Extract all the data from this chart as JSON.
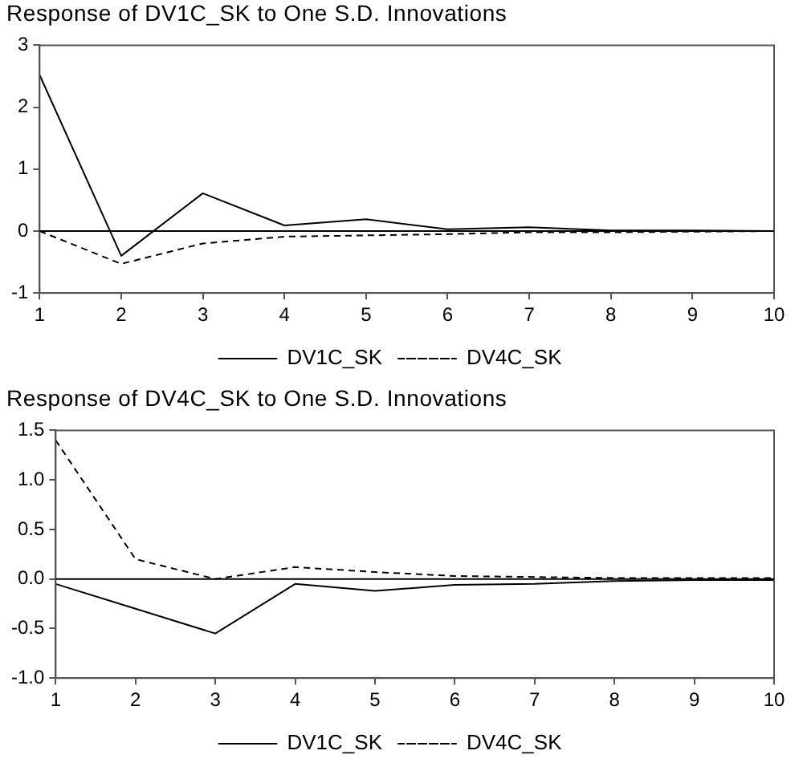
{
  "chart_data": [
    {
      "type": "line",
      "title": "Response of DV1C_SK to One S.D. Innovations",
      "x": [
        1,
        2,
        3,
        4,
        5,
        6,
        7,
        8,
        9,
        10
      ],
      "xlim": [
        1,
        10
      ],
      "xticks": [
        1,
        2,
        3,
        4,
        5,
        6,
        7,
        8,
        9,
        10
      ],
      "ylim": [
        -1,
        3
      ],
      "yticks": [
        -1,
        0,
        1,
        2,
        3
      ],
      "grid": false,
      "legend": "bottom",
      "marker": "none",
      "ref_lines": [
        {
          "axis": "y",
          "value": 0,
          "color": "#000000"
        }
      ],
      "series": [
        {
          "name": "DV1C_SK",
          "color": "#000000",
          "line_style": "solid",
          "values": [
            2.52,
            -0.4,
            0.61,
            0.09,
            0.19,
            0.03,
            0.06,
            0.01,
            0.01,
            0.0
          ]
        },
        {
          "name": "DV4C_SK",
          "color": "#000000",
          "line_style": "dashed",
          "values": [
            0,
            -0.53,
            -0.2,
            -0.09,
            -0.07,
            -0.05,
            -0.02,
            -0.02,
            -0.01,
            0.0
          ]
        }
      ]
    },
    {
      "type": "line",
      "title": "Response of DV4C_SK to One S.D. Innovations",
      "x": [
        1,
        2,
        3,
        4,
        5,
        6,
        7,
        8,
        9,
        10
      ],
      "xlim": [
        1,
        10
      ],
      "xticks": [
        1,
        2,
        3,
        4,
        5,
        6,
        7,
        8,
        9,
        10
      ],
      "ylim": [
        -1,
        1.5
      ],
      "yticks": [
        {
          "value": -1,
          "label": "-1.0"
        },
        {
          "value": -0.5,
          "label": "-0.5"
        },
        {
          "value": 0,
          "label": "0.0"
        },
        {
          "value": 0.5,
          "label": "0.5"
        },
        {
          "value": 1,
          "label": "1.0"
        },
        {
          "value": 1.5,
          "label": "1.5"
        }
      ],
      "grid": false,
      "legend": "bottom",
      "marker": "none",
      "ref_lines": [
        {
          "axis": "y",
          "value": 0,
          "color": "#000000"
        }
      ],
      "series": [
        {
          "name": "DV1C_SK",
          "color": "#000000",
          "line_style": "solid",
          "values": [
            -0.05,
            -0.3,
            -0.55,
            -0.05,
            -0.12,
            -0.06,
            -0.05,
            -0.02,
            -0.01,
            -0.01
          ]
        },
        {
          "name": "DV4C_SK",
          "color": "#000000",
          "line_style": "dashed",
          "values": [
            1.4,
            0.2,
            0.0,
            0.12,
            0.07,
            0.03,
            0.02,
            0.01,
            0.01,
            0.01
          ]
        }
      ]
    }
  ]
}
